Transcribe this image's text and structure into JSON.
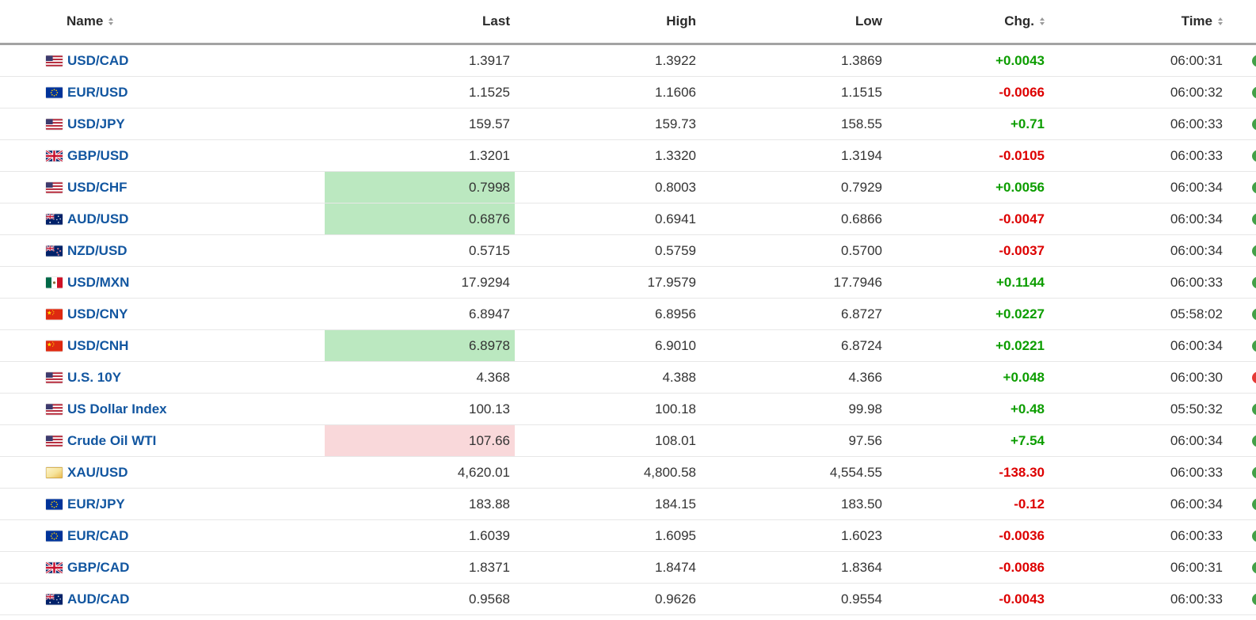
{
  "colors": {
    "link_blue": "#1256A0",
    "up_green": "#0C9D00",
    "down_red": "#DD0000",
    "highlight_up_bg": "#BBE8C0",
    "highlight_down_bg": "#F9D8DA",
    "clock_green": "#43A047",
    "clock_red": "#E53935",
    "header_border": "#A3A3A3",
    "row_border": "#E7E7E7"
  },
  "table": {
    "columns": [
      {
        "label": "Name",
        "align": "left",
        "sortable": true
      },
      {
        "label": "Last",
        "align": "right",
        "sortable": false
      },
      {
        "label": "High",
        "align": "right",
        "sortable": false
      },
      {
        "label": "Low",
        "align": "right",
        "sortable": false
      },
      {
        "label": "Chg.",
        "align": "right",
        "sortable": true
      },
      {
        "label": "Time",
        "align": "right",
        "sortable": true
      }
    ],
    "rows": [
      {
        "name": "USD/CAD",
        "flag": "us",
        "last": "1.3917",
        "high": "1.3922",
        "low": "1.3869",
        "chg": "+0.0043",
        "chg_dir": "up",
        "time": "06:00:31",
        "clock": "green",
        "last_highlight": "none"
      },
      {
        "name": "EUR/USD",
        "flag": "eu",
        "last": "1.1525",
        "high": "1.1606",
        "low": "1.1515",
        "chg": "-0.0066",
        "chg_dir": "down",
        "time": "06:00:32",
        "clock": "green",
        "last_highlight": "none"
      },
      {
        "name": "USD/JPY",
        "flag": "us",
        "last": "159.57",
        "high": "159.73",
        "low": "158.55",
        "chg": "+0.71",
        "chg_dir": "up",
        "time": "06:00:33",
        "clock": "green",
        "last_highlight": "none"
      },
      {
        "name": "GBP/USD",
        "flag": "gb",
        "last": "1.3201",
        "high": "1.3320",
        "low": "1.3194",
        "chg": "-0.0105",
        "chg_dir": "down",
        "time": "06:00:33",
        "clock": "green",
        "last_highlight": "none"
      },
      {
        "name": "USD/CHF",
        "flag": "us",
        "last": "0.7998",
        "high": "0.8003",
        "low": "0.7929",
        "chg": "+0.0056",
        "chg_dir": "up",
        "time": "06:00:34",
        "clock": "green",
        "last_highlight": "up"
      },
      {
        "name": "AUD/USD",
        "flag": "au",
        "last": "0.6876",
        "high": "0.6941",
        "low": "0.6866",
        "chg": "-0.0047",
        "chg_dir": "down",
        "time": "06:00:34",
        "clock": "green",
        "last_highlight": "up"
      },
      {
        "name": "NZD/USD",
        "flag": "nz",
        "last": "0.5715",
        "high": "0.5759",
        "low": "0.5700",
        "chg": "-0.0037",
        "chg_dir": "down",
        "time": "06:00:34",
        "clock": "green",
        "last_highlight": "none"
      },
      {
        "name": "USD/MXN",
        "flag": "mx",
        "last": "17.9294",
        "high": "17.9579",
        "low": "17.7946",
        "chg": "+0.1144",
        "chg_dir": "up",
        "time": "06:00:33",
        "clock": "green",
        "last_highlight": "none"
      },
      {
        "name": "USD/CNY",
        "flag": "cn",
        "last": "6.8947",
        "high": "6.8956",
        "low": "6.8727",
        "chg": "+0.0227",
        "chg_dir": "up",
        "time": "05:58:02",
        "clock": "green",
        "last_highlight": "none"
      },
      {
        "name": "USD/CNH",
        "flag": "cn",
        "last": "6.8978",
        "high": "6.9010",
        "low": "6.8724",
        "chg": "+0.0221",
        "chg_dir": "up",
        "time": "06:00:34",
        "clock": "green",
        "last_highlight": "up"
      },
      {
        "name": "U.S. 10Y",
        "flag": "us",
        "last": "4.368",
        "high": "4.388",
        "low": "4.366",
        "chg": "+0.048",
        "chg_dir": "up",
        "time": "06:00:30",
        "clock": "red",
        "last_highlight": "none"
      },
      {
        "name": "US Dollar Index",
        "flag": "us",
        "last": "100.13",
        "high": "100.18",
        "low": "99.98",
        "chg": "+0.48",
        "chg_dir": "up",
        "time": "05:50:32",
        "clock": "green",
        "last_highlight": "none"
      },
      {
        "name": "Crude Oil WTI",
        "flag": "us",
        "last": "107.66",
        "high": "108.01",
        "low": "97.56",
        "chg": "+7.54",
        "chg_dir": "up",
        "time": "06:00:34",
        "clock": "green",
        "last_highlight": "down"
      },
      {
        "name": "XAU/USD",
        "flag": "gold",
        "last": "4,620.01",
        "high": "4,800.58",
        "low": "4,554.55",
        "chg": "-138.30",
        "chg_dir": "down",
        "time": "06:00:33",
        "clock": "green",
        "last_highlight": "none"
      },
      {
        "name": "EUR/JPY",
        "flag": "eu",
        "last": "183.88",
        "high": "184.15",
        "low": "183.50",
        "chg": "-0.12",
        "chg_dir": "down",
        "time": "06:00:34",
        "clock": "green",
        "last_highlight": "none"
      },
      {
        "name": "EUR/CAD",
        "flag": "eu",
        "last": "1.6039",
        "high": "1.6095",
        "low": "1.6023",
        "chg": "-0.0036",
        "chg_dir": "down",
        "time": "06:00:33",
        "clock": "green",
        "last_highlight": "none"
      },
      {
        "name": "GBP/CAD",
        "flag": "gb",
        "last": "1.8371",
        "high": "1.8474",
        "low": "1.8364",
        "chg": "-0.0086",
        "chg_dir": "down",
        "time": "06:00:31",
        "clock": "green",
        "last_highlight": "none"
      },
      {
        "name": "AUD/CAD",
        "flag": "au",
        "last": "0.9568",
        "high": "0.9626",
        "low": "0.9554",
        "chg": "-0.0043",
        "chg_dir": "down",
        "time": "06:00:33",
        "clock": "green",
        "last_highlight": "none"
      }
    ]
  }
}
